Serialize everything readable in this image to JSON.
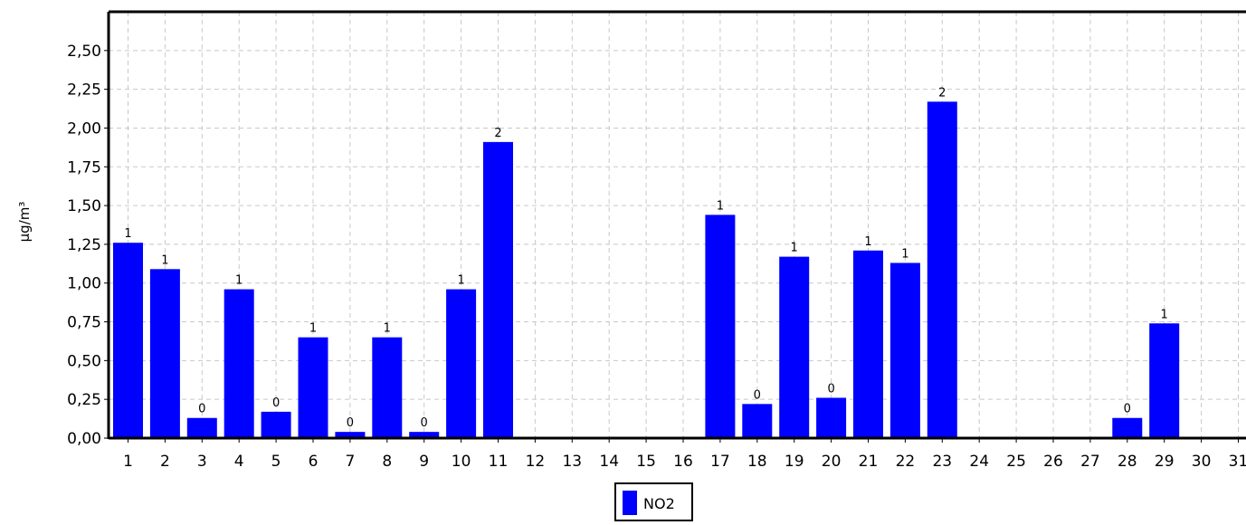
{
  "chart_data": {
    "type": "bar",
    "title": "",
    "xlabel": "",
    "ylabel": "µg/m³",
    "ylim": [
      0,
      2.75
    ],
    "y_ticks": [
      "0,00",
      "0,25",
      "0,50",
      "0,75",
      "1,00",
      "1,25",
      "1,50",
      "1,75",
      "2,00",
      "2,25",
      "2,50"
    ],
    "y_tick_values": [
      0,
      0.25,
      0.5,
      0.75,
      1.0,
      1.25,
      1.5,
      1.75,
      2.0,
      2.25,
      2.5
    ],
    "categories": [
      "1",
      "2",
      "3",
      "4",
      "5",
      "6",
      "7",
      "8",
      "9",
      "10",
      "11",
      "12",
      "13",
      "14",
      "15",
      "16",
      "17",
      "18",
      "19",
      "20",
      "21",
      "22",
      "23",
      "24",
      "25",
      "26",
      "27",
      "28",
      "29",
      "30",
      "31"
    ],
    "grid": true,
    "legend_position": "bottom-center",
    "series": [
      {
        "name": "NO2",
        "color": "#0000ff",
        "values": [
          1.26,
          1.09,
          0.13,
          0.96,
          0.17,
          0.65,
          0.04,
          0.65,
          0.04,
          0.96,
          1.91,
          null,
          null,
          null,
          null,
          null,
          1.44,
          0.22,
          1.17,
          0.26,
          1.21,
          1.13,
          2.17,
          null,
          null,
          null,
          null,
          0.13,
          0.74,
          null,
          null
        ],
        "data_labels": [
          "1",
          "1",
          "0",
          "1",
          "0",
          "1",
          "0",
          "1",
          "0",
          "1",
          "2",
          "",
          "",
          "",
          "",
          "",
          "1",
          "0",
          "1",
          "0",
          "1",
          "1",
          "2",
          "",
          "",
          "",
          "",
          "0",
          "1",
          "",
          ""
        ]
      }
    ]
  }
}
